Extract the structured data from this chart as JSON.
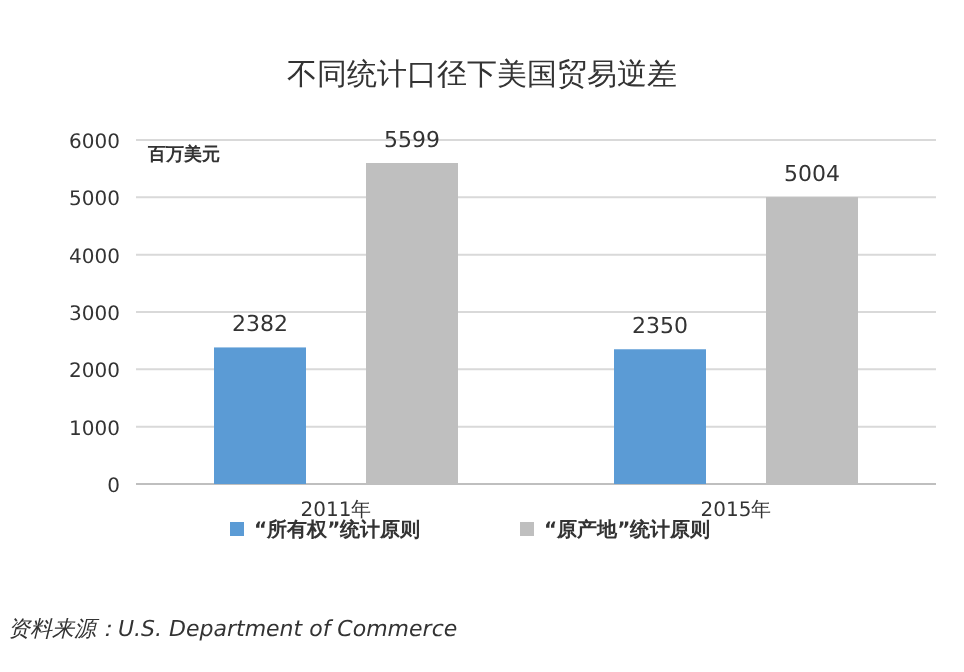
{
  "chart_data": {
    "type": "bar",
    "title": "不同统计口径下美国贸易逆差",
    "ylabel": "百万美元",
    "categories": [
      "2011年",
      "2015年"
    ],
    "series": [
      {
        "name": "“所有权”统计原则",
        "color": "#5b9bd5",
        "values": [
          2382,
          2350
        ]
      },
      {
        "name": "“原产地”统计原则",
        "color": "#bfbfbf",
        "values": [
          5599,
          5004
        ]
      }
    ],
    "ylim": [
      0,
      6000
    ],
    "yticks": [
      0,
      1000,
      2000,
      3000,
      4000,
      5000,
      6000
    ],
    "grid": "y",
    "legend": "bottom",
    "data_labels": true,
    "annotations": [
      "资料来源：U.S. Department of Commerce"
    ]
  }
}
